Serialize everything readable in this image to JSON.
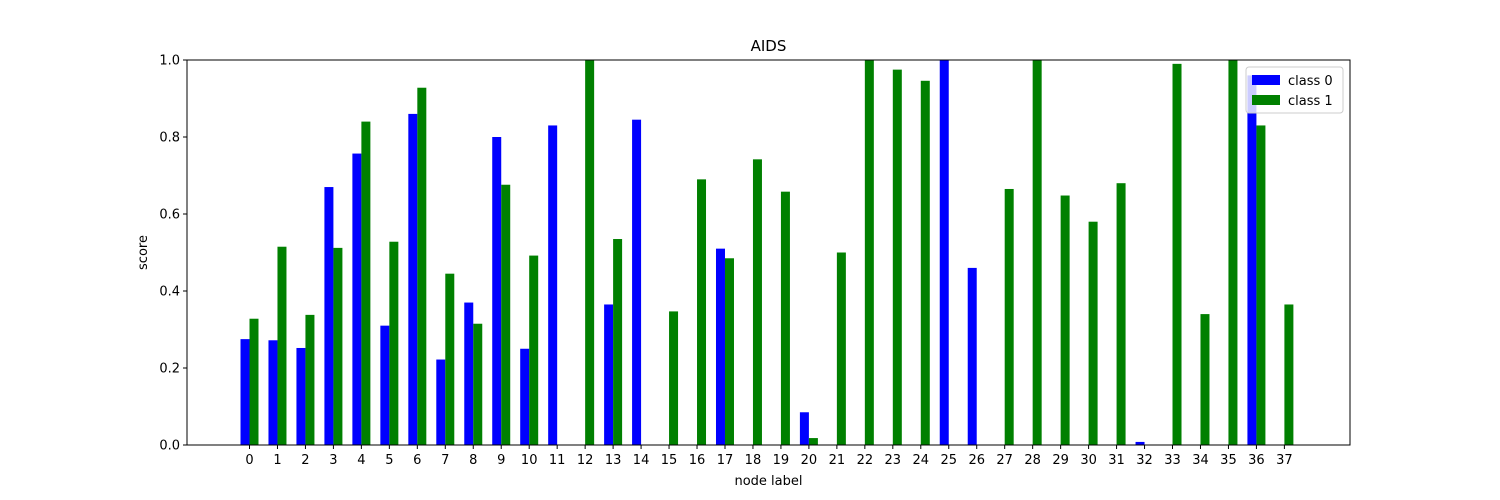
{
  "chart_data": {
    "type": "bar",
    "title": "AIDS",
    "xlabel": "node label",
    "ylabel": "score",
    "ylim": [
      0,
      1
    ],
    "yticks": [
      "0.0",
      "0.2",
      "0.4",
      "0.6",
      "0.8",
      "1.0"
    ],
    "categories": [
      "0",
      "1",
      "2",
      "3",
      "4",
      "5",
      "6",
      "7",
      "8",
      "9",
      "10",
      "11",
      "12",
      "13",
      "14",
      "15",
      "16",
      "17",
      "18",
      "19",
      "20",
      "21",
      "22",
      "23",
      "24",
      "25",
      "26",
      "27",
      "28",
      "29",
      "30",
      "31",
      "32",
      "33",
      "34",
      "35",
      "36",
      "37"
    ],
    "series": [
      {
        "name": "class 0",
        "color": "#0000ff",
        "values": [
          0.275,
          0.272,
          0.252,
          0.67,
          0.757,
          0.31,
          0.86,
          0.222,
          0.37,
          0.8,
          0.25,
          0.83,
          0,
          0.365,
          0.845,
          0,
          0,
          0.51,
          0,
          0,
          0.085,
          0,
          0,
          0,
          0,
          1.0,
          0.46,
          0,
          0,
          0,
          0,
          0,
          0.008,
          0,
          0,
          0,
          0.96,
          0
        ]
      },
      {
        "name": "class 1",
        "color": "#008000",
        "values": [
          0.328,
          0.515,
          0.338,
          0.512,
          0.84,
          0.528,
          0.928,
          0.445,
          0.315,
          0.676,
          0.492,
          0,
          1.0,
          0.535,
          0,
          0.347,
          0.69,
          0.485,
          0.742,
          0.658,
          0.018,
          0.5,
          1.0,
          0.975,
          0.946,
          0,
          0,
          0.665,
          1.0,
          0.648,
          0.58,
          0.68,
          0,
          0.99,
          0.34,
          1.0,
          0.83,
          0.365
        ]
      }
    ],
    "legend_position": "top-right"
  }
}
